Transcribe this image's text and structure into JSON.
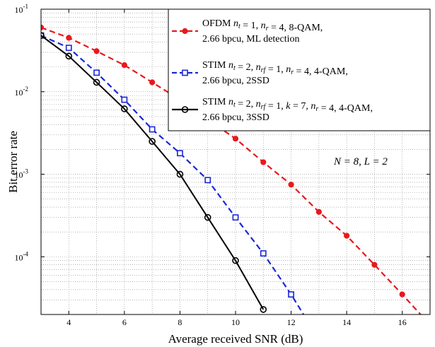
{
  "chart_data": {
    "type": "line",
    "xlabel": "Average received SNR (dB)",
    "ylabel": "Bit error rate",
    "xlim": [
      3,
      17
    ],
    "ylim": [
      2e-05,
      0.1
    ],
    "yscale": "log",
    "grid": true,
    "legend_position": "top-right",
    "x_ticks": [
      4,
      6,
      8,
      10,
      12,
      14,
      16
    ],
    "y_ticks": [
      {
        "value": 0.1,
        "base": "10",
        "exp": "-1"
      },
      {
        "value": 0.01,
        "base": "10",
        "exp": "-2"
      },
      {
        "value": 0.001,
        "base": "10",
        "exp": "-3"
      },
      {
        "value": 0.0001,
        "base": "10",
        "exp": "-4"
      }
    ],
    "annotation": "N = 8, L = 2",
    "series": [
      {
        "name": "OFDM n_t = 1, n_r = 4, 8-QAM, 2.66 bpcu, ML detection",
        "legend_line1": "OFDM n_t = 1, n_r = 4, 8-QAM,",
        "legend_line2": "2.66 bpcu, ML detection",
        "color": "#e8191e",
        "line_style": "dashed",
        "marker": "dot",
        "x": [
          3,
          4,
          5,
          6,
          7,
          8,
          9,
          10,
          11,
          12,
          13,
          14,
          15,
          16,
          17
        ],
        "y": [
          0.06,
          0.045,
          0.031,
          0.021,
          0.013,
          0.008,
          0.0046,
          0.0027,
          0.0014,
          0.00075,
          0.00035,
          0.00018,
          8e-05,
          3.5e-05,
          1.5e-05
        ]
      },
      {
        "name": "STIM n_t = 2, n_rf = 1, n_r = 4, 4-QAM, 2.66 bpcu, 2SSD",
        "legend_line1": "STIM n_t = 2, n_rf = 1, n_r = 4, 4-QAM,",
        "legend_line2": "2.66 bpcu, 2SSD",
        "color": "#1a27d8",
        "line_style": "dashed",
        "marker": "square",
        "x": [
          3,
          4,
          5,
          6,
          7,
          8,
          9,
          10,
          11,
          12,
          13
        ],
        "y": [
          0.048,
          0.034,
          0.017,
          0.008,
          0.0035,
          0.0018,
          0.00085,
          0.0003,
          0.00011,
          3.5e-05,
          1e-05
        ]
      },
      {
        "name": "STIM n_t = 2, n_rf = 1, k = 7, n_r = 4, 4-QAM, 2.66 bpcu, 3SSD",
        "legend_line1": "STIM n_t = 2, n_rf = 1, k = 7, n_r = 4, 4-QAM,",
        "legend_line2": "2.66 bpcu, 3SSD",
        "color": "#000000",
        "line_style": "solid",
        "marker": "circle",
        "x": [
          3,
          4,
          5,
          6,
          7,
          8,
          9,
          10,
          11
        ],
        "y": [
          0.048,
          0.027,
          0.013,
          0.0062,
          0.0025,
          0.001,
          0.0003,
          9e-05,
          2.3e-05
        ]
      }
    ]
  }
}
